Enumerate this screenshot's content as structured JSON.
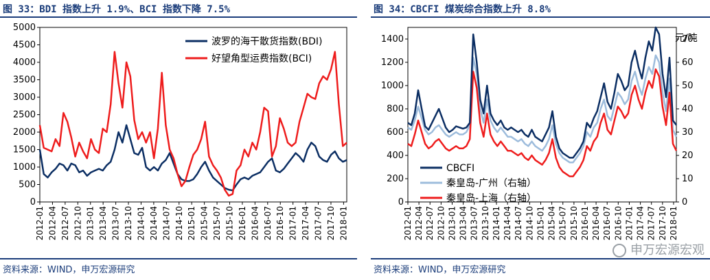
{
  "colors": {
    "navy": "#0b2e63",
    "red": "#ee1c1c",
    "light_blue": "#9dbcdc",
    "title_blue": "#1a3c7a"
  },
  "left": {
    "title": "图 33：BDI 指数上升 1.9%、BCI 指数下降 7.5%",
    "source": "资料来源：WIND，申万宏源研究"
  },
  "right": {
    "title": "图 34：CBCFI 煤炭综合指数上升 8.8%",
    "source": "资料来源：WIND，申万宏源研究",
    "unit_label": "元/吨",
    "watermark": "申万宏源宏观"
  },
  "chart_data": [
    {
      "type": "line",
      "title": "",
      "ylim": [
        0,
        5000
      ],
      "yticks": [
        "0",
        "500",
        "1000",
        "1500",
        "2000",
        "2500",
        "3000",
        "3500",
        "4000",
        "4500",
        "5000"
      ],
      "categories": [
        "2012-01",
        "2012-04",
        "2012-07",
        "2012-10",
        "2013-01",
        "2013-04",
        "2013-07",
        "2013-10",
        "2014-01",
        "2014-04",
        "2014-07",
        "2014-10",
        "2015-01",
        "2015-04",
        "2015-07",
        "2015-10",
        "2016-01",
        "2016-04",
        "2016-07",
        "2016-10",
        "2017-01",
        "2017-04",
        "2017-07",
        "2017-10",
        "2018-01"
      ],
      "x_range": [
        0,
        78
      ],
      "legend": "top-right",
      "series": [
        {
          "name": "波罗的海干散货指数(BDI)",
          "color": "#0b2e63",
          "x": [
            0,
            1,
            2,
            3,
            4,
            5,
            6,
            7,
            8,
            9,
            10,
            11,
            12,
            13,
            14,
            15,
            16,
            17,
            18,
            19,
            20,
            21,
            22,
            23,
            24,
            25,
            26,
            27,
            28,
            29,
            30,
            31,
            32,
            33,
            34,
            35,
            36,
            37,
            38,
            39,
            40,
            41,
            42,
            43,
            44,
            45,
            46,
            47,
            48,
            49,
            50,
            51,
            52,
            53,
            54,
            55,
            56,
            57,
            58,
            59,
            60,
            61,
            62,
            63,
            64,
            65,
            66,
            67,
            68,
            69,
            70,
            71,
            72,
            73,
            74,
            75,
            76,
            77,
            78
          ],
          "values": [
            1500,
            800,
            700,
            850,
            950,
            1100,
            1050,
            900,
            1100,
            1050,
            850,
            900,
            750,
            850,
            900,
            950,
            900,
            1050,
            1150,
            1500,
            2000,
            1700,
            2200,
            1800,
            1400,
            1350,
            1550,
            1000,
            900,
            1000,
            900,
            1100,
            1200,
            1400,
            1100,
            800,
            650,
            600,
            600,
            650,
            800,
            1000,
            1150,
            900,
            700,
            600,
            500,
            400,
            350,
            330,
            500,
            650,
            700,
            650,
            750,
            800,
            850,
            1000,
            1150,
            1250,
            900,
            850,
            950,
            1100,
            1250,
            1400,
            1300,
            1150,
            1500,
            1700,
            1600,
            1300,
            1200,
            1150,
            1350,
            1450,
            1250,
            1150,
            1200
          ]
        },
        {
          "name": "好望角型运费指数(BCI)",
          "color": "#ee1c1c",
          "x": [
            0,
            1,
            2,
            3,
            4,
            5,
            6,
            7,
            8,
            9,
            10,
            11,
            12,
            13,
            14,
            15,
            16,
            17,
            18,
            19,
            20,
            21,
            22,
            23,
            24,
            25,
            26,
            27,
            28,
            29,
            30,
            31,
            32,
            33,
            34,
            35,
            36,
            37,
            38,
            39,
            40,
            41,
            42,
            43,
            44,
            45,
            46,
            47,
            48,
            49,
            50,
            51,
            52,
            53,
            54,
            55,
            56,
            57,
            58,
            59,
            60,
            61,
            62,
            63,
            64,
            65,
            66,
            67,
            68,
            69,
            70,
            71,
            72,
            73,
            74,
            75,
            76,
            77,
            78
          ],
          "values": [
            2200,
            1550,
            1500,
            1450,
            1800,
            1600,
            2550,
            2300,
            1850,
            1300,
            1700,
            1450,
            1250,
            1800,
            1500,
            1400,
            2100,
            2000,
            2800,
            4300,
            3400,
            2700,
            4000,
            3600,
            2350,
            1800,
            2000,
            1700,
            2000,
            1250,
            2100,
            3700,
            2200,
            1500,
            1250,
            800,
            450,
            600,
            1000,
            1350,
            1500,
            1800,
            2300,
            1300,
            1050,
            900,
            700,
            350,
            180,
            230,
            900,
            1050,
            1500,
            1300,
            1700,
            1500,
            2000,
            2700,
            2600,
            1300,
            1600,
            2400,
            2100,
            1700,
            1600,
            1700,
            2300,
            2700,
            3100,
            3000,
            2950,
            3400,
            3600,
            3500,
            3800,
            4300,
            2800,
            1600,
            1700
          ]
        }
      ]
    },
    {
      "type": "line",
      "title": "",
      "ylim_left": [
        0,
        1500
      ],
      "ylim_right": [
        0,
        75
      ],
      "yticks_left": [
        "0",
        "200",
        "400",
        "600",
        "800",
        "1000",
        "1200",
        "1400"
      ],
      "yticks_right": [
        "0",
        "10",
        "20",
        "30",
        "40",
        "50",
        "60",
        "70"
      ],
      "right_axis_unit": "元/吨",
      "categories": [
        "2012-01",
        "2012-04",
        "2012-07",
        "2012-10",
        "2013-01",
        "2013-04",
        "2013-07",
        "2013-10",
        "2014-01",
        "2014-04",
        "2014-07",
        "2014-10",
        "2015-01",
        "2015-04",
        "2015-07",
        "2015-10",
        "2016-01",
        "2016-04",
        "2016-07",
        "2016-10",
        "2017-01",
        "2017-04",
        "2017-07",
        "2017-10",
        "2018-01"
      ],
      "x_range": [
        0,
        78
      ],
      "legend": "bottom-left",
      "series": [
        {
          "name": "CBCFI",
          "color": "#0b2e63",
          "axis": "left",
          "x": [
            0,
            1,
            2,
            3,
            4,
            5,
            6,
            7,
            8,
            9,
            10,
            11,
            12,
            13,
            14,
            15,
            16,
            17,
            18,
            19,
            20,
            21,
            22,
            23,
            24,
            25,
            26,
            27,
            28,
            29,
            30,
            31,
            32,
            33,
            34,
            35,
            36,
            37,
            38,
            39,
            40,
            41,
            42,
            43,
            44,
            45,
            46,
            47,
            48,
            49,
            50,
            51,
            52,
            53,
            54,
            55,
            56,
            57,
            58,
            59,
            60,
            61,
            62,
            63,
            64,
            65,
            66,
            67,
            68,
            69,
            70,
            71,
            72,
            73,
            74,
            75,
            76,
            77,
            78
          ],
          "values": [
            680,
            660,
            760,
            960,
            800,
            650,
            620,
            680,
            740,
            800,
            720,
            640,
            600,
            620,
            650,
            640,
            630,
            640,
            680,
            1440,
            1200,
            880,
            760,
            1000,
            760,
            700,
            660,
            700,
            640,
            620,
            640,
            620,
            600,
            620,
            580,
            560,
            620,
            560,
            540,
            520,
            580,
            640,
            780,
            560,
            460,
            420,
            400,
            380,
            380,
            420,
            460,
            520,
            680,
            640,
            720,
            780,
            900,
            1020,
            860,
            800,
            940,
            1100,
            1040,
            960,
            1000,
            1200,
            1300,
            1160,
            1060,
            1240,
            1380,
            1300,
            1500,
            1440,
            1100,
            900,
            1240,
            700,
            660
          ]
        },
        {
          "name": "秦皇岛-广州（右轴）",
          "color": "#9dbcdc",
          "axis": "right",
          "x": [
            0,
            1,
            2,
            3,
            4,
            5,
            6,
            7,
            8,
            9,
            10,
            11,
            12,
            13,
            14,
            15,
            16,
            17,
            18,
            19,
            20,
            21,
            22,
            23,
            24,
            25,
            26,
            27,
            28,
            29,
            30,
            31,
            32,
            33,
            34,
            35,
            36,
            37,
            38,
            39,
            40,
            41,
            42,
            43,
            44,
            45,
            46,
            47,
            48,
            49,
            50,
            51,
            52,
            53,
            54,
            55,
            56,
            57,
            58,
            59,
            60,
            61,
            62,
            63,
            64,
            65,
            66,
            67,
            68,
            69,
            70,
            71,
            72,
            73,
            74,
            75,
            76,
            77,
            78
          ],
          "values": [
            32,
            31,
            35,
            41,
            36,
            31,
            29,
            30,
            32,
            33,
            31,
            29,
            28,
            29,
            30,
            29,
            29,
            30,
            33,
            62,
            55,
            40,
            34,
            44,
            35,
            32,
            30,
            32,
            30,
            28,
            28,
            27,
            26,
            27,
            25,
            24,
            26,
            24,
            23,
            22,
            24,
            27,
            33,
            25,
            21,
            19,
            18,
            17,
            17,
            19,
            21,
            24,
            30,
            28,
            32,
            34,
            40,
            44,
            37,
            35,
            41,
            47,
            45,
            42,
            44,
            52,
            56,
            50,
            46,
            53,
            58,
            55,
            63,
            60,
            47,
            39,
            53,
            31,
            28
          ]
        },
        {
          "name": "秦皇岛-上海（右轴）",
          "color": "#ee1c1c",
          "axis": "right",
          "x": [
            0,
            1,
            2,
            3,
            4,
            5,
            6,
            7,
            8,
            9,
            10,
            11,
            12,
            13,
            14,
            15,
            16,
            17,
            18,
            19,
            20,
            21,
            22,
            23,
            24,
            25,
            26,
            27,
            28,
            29,
            30,
            31,
            32,
            33,
            34,
            35,
            36,
            37,
            38,
            39,
            40,
            41,
            42,
            43,
            44,
            45,
            46,
            47,
            48,
            49,
            50,
            51,
            52,
            53,
            54,
            55,
            56,
            57,
            58,
            59,
            60,
            61,
            62,
            63,
            64,
            65,
            66,
            67,
            68,
            69,
            70,
            71,
            72,
            73,
            74,
            75,
            76,
            77,
            78
          ],
          "values": [
            25,
            24,
            29,
            35,
            30,
            25,
            23,
            24,
            26,
            27,
            25,
            23,
            22,
            23,
            24,
            23,
            23,
            24,
            27,
            56,
            49,
            34,
            28,
            38,
            29,
            26,
            24,
            26,
            24,
            22,
            22,
            21,
            20,
            21,
            19,
            18,
            20,
            18,
            17,
            16,
            18,
            21,
            27,
            19,
            15,
            13,
            12,
            11,
            11,
            13,
            15,
            18,
            24,
            22,
            26,
            28,
            34,
            38,
            31,
            29,
            35,
            41,
            39,
            36,
            38,
            46,
            50,
            44,
            40,
            47,
            52,
            49,
            57,
            54,
            41,
            33,
            47,
            25,
            22
          ]
        }
      ]
    }
  ]
}
